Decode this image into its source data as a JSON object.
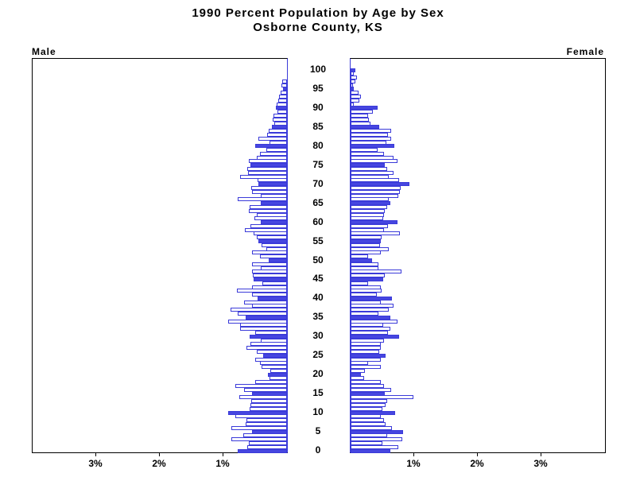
{
  "title": {
    "line1": "1990 Percent Population by Age by Sex",
    "line2": "Osborne County, KS"
  },
  "panel_labels": {
    "left": "Male",
    "right": "Female"
  },
  "colors": {
    "bar_outline": "#3b3bd9",
    "bar_solid_fill": "#4646e0",
    "bar_empty_fill": "#ffffff",
    "frame": "#000000",
    "text": "#000000"
  },
  "chart_data": {
    "type": "bar",
    "subtype": "population-pyramid",
    "title": "1990 Percent Population by Age by Sex",
    "subtitle": "Osborne County, KS",
    "age_min": 0,
    "age_max": 100,
    "age_tick_step": 5,
    "age_tick_labels": [
      "0",
      "5",
      "10",
      "15",
      "20",
      "25",
      "30",
      "35",
      "40",
      "45",
      "50",
      "55",
      "60",
      "65",
      "70",
      "75",
      "80",
      "85",
      "90",
      "95",
      "100"
    ],
    "x_tick_labels_male": [
      "3%",
      "2%",
      "1%"
    ],
    "x_tick_labels_female": [
      "1%",
      "2%",
      "3%"
    ],
    "x_percent_per_tick": 1,
    "xlim_percent": [
      0,
      4
    ],
    "grid": false,
    "legend": "none",
    "highlight_rule": "bars for ages divisible by 5 are solid blue; all other ages are white with blue outline",
    "series": [
      {
        "name": "Male",
        "unit": "percent of population",
        "values": [
          0.78,
          0.63,
          0.6,
          0.88,
          0.69,
          0.55,
          0.87,
          0.65,
          0.64,
          0.81,
          0.92,
          0.59,
          0.57,
          0.56,
          0.75,
          0.55,
          0.67,
          0.81,
          0.5,
          0.27,
          0.3,
          0.26,
          0.4,
          0.42,
          0.5,
          0.38,
          0.47,
          0.64,
          0.58,
          0.41,
          0.59,
          0.5,
          0.74,
          0.74,
          0.92,
          0.65,
          0.78,
          0.89,
          0.55,
          0.67,
          0.46,
          0.55,
          0.79,
          0.55,
          0.39,
          0.52,
          0.54,
          0.55,
          0.41,
          0.55,
          0.29,
          0.43,
          0.55,
          0.33,
          0.4,
          0.45,
          0.48,
          0.53,
          0.66,
          0.57,
          0.41,
          0.51,
          0.48,
          0.6,
          0.59,
          0.41,
          0.78,
          0.41,
          0.55,
          0.56,
          0.45,
          0.46,
          0.74,
          0.61,
          0.62,
          0.57,
          0.6,
          0.47,
          0.43,
          0.32,
          0.5,
          0.28,
          0.45,
          0.31,
          0.29,
          0.24,
          0.2,
          0.23,
          0.21,
          0.15,
          0.175,
          0.16,
          0.14,
          0.12,
          0.1,
          0.06,
          0.09,
          0.07,
          0.0,
          0.0,
          0.0
        ]
      },
      {
        "name": "Female",
        "unit": "percent of population",
        "values": [
          0.62,
          0.75,
          0.5,
          0.81,
          0.575,
          0.82,
          0.65,
          0.55,
          0.52,
          0.48,
          0.7,
          0.5,
          0.55,
          0.58,
          0.99,
          0.54,
          0.64,
          0.52,
          0.47,
          0.21,
          0.16,
          0.23,
          0.48,
          0.28,
          0.47,
          0.55,
          0.45,
          0.48,
          0.47,
          0.52,
          0.76,
          0.59,
          0.63,
          0.51,
          0.74,
          0.62,
          0.44,
          0.6,
          0.675,
          0.47,
          0.645,
          0.41,
          0.49,
          0.47,
          0.28,
          0.51,
          0.54,
          0.8,
          0.44,
          0.44,
          0.34,
          0.28,
          0.47,
          0.6,
          0.46,
          0.47,
          0.49,
          0.77,
          0.52,
          0.59,
          0.74,
          0.51,
          0.53,
          0.54,
          0.58,
          0.62,
          0.6,
          0.75,
          0.77,
          0.79,
          0.925,
          0.76,
          0.6,
          0.67,
          0.575,
          0.54,
          0.74,
          0.675,
          0.52,
          0.42,
          0.69,
          0.56,
          0.64,
          0.59,
          0.64,
          0.45,
          0.31,
          0.29,
          0.28,
          0.35,
          0.425,
          0.05,
          0.14,
          0.16,
          0.125,
          0.05,
          0.04,
          0.075,
          0.1,
          0.05,
          0.075
        ]
      }
    ]
  }
}
